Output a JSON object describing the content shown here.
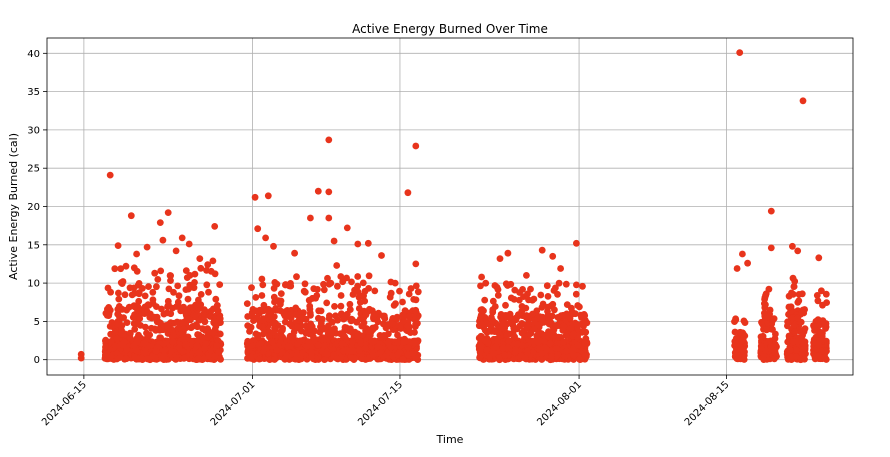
{
  "chart_data": {
    "type": "scatter",
    "title": "Active Energy Burned Over Time",
    "xlabel": "Time",
    "ylabel": "Active Energy Burned (cal)",
    "xlim": [
      "2024-06-11T12:00",
      "2024-08-27T00:00"
    ],
    "ylim": [
      -2,
      42
    ],
    "x_ticks": [
      "2024-06-15",
      "2024-07-01",
      "2024-07-15",
      "2024-08-01",
      "2024-08-15"
    ],
    "y_ticks": [
      0,
      5,
      10,
      15,
      20,
      25,
      30,
      35,
      40
    ],
    "grid": true,
    "marker_color": "#e8341c",
    "series": [
      {
        "points": [
          [
            "2024-06-14T18:00",
            0.7
          ],
          [
            "2024-06-14T18:00",
            0.2
          ],
          [
            "2024-06-17T12:00",
            24.1
          ],
          [
            "2024-06-19T12:00",
            18.8
          ],
          [
            "2024-06-22T06:00",
            17.9
          ],
          [
            "2024-06-23T00:00",
            19.2
          ],
          [
            "2024-06-24T08:00",
            15.9
          ],
          [
            "2024-06-27T10:00",
            17.4
          ],
          [
            "2024-06-18T06:00",
            14.9
          ],
          [
            "2024-06-20T00:00",
            13.8
          ],
          [
            "2024-06-21T00:00",
            14.7
          ],
          [
            "2024-06-22T12:00",
            15.6
          ],
          [
            "2024-06-23T18:00",
            14.2
          ],
          [
            "2024-06-25T00:00",
            15.1
          ],
          [
            "2024-06-26T00:00",
            13.2
          ],
          [
            "2024-06-27T06:00",
            12.9
          ],
          [
            "2024-06-26T18:00",
            12.4
          ],
          [
            "2024-06-19T00:00",
            12.2
          ],
          [
            "2024-07-01T06:00",
            21.2
          ],
          [
            "2024-07-02T12:00",
            21.4
          ],
          [
            "2024-07-01T12:00",
            17.1
          ],
          [
            "2024-07-02T06:00",
            15.9
          ],
          [
            "2024-07-03T00:00",
            14.8
          ],
          [
            "2024-07-05T00:00",
            13.9
          ],
          [
            "2024-07-06T12:00",
            18.5
          ],
          [
            "2024-07-07T06:00",
            22.0
          ],
          [
            "2024-07-08T06:00",
            28.7
          ],
          [
            "2024-07-08T06:00",
            21.9
          ],
          [
            "2024-07-08T06:00",
            18.5
          ],
          [
            "2024-07-08T18:00",
            15.5
          ],
          [
            "2024-07-10T00:00",
            17.2
          ],
          [
            "2024-07-11T00:00",
            15.1
          ],
          [
            "2024-07-12T00:00",
            15.2
          ],
          [
            "2024-07-13T06:00",
            13.6
          ],
          [
            "2024-07-15T18:00",
            21.8
          ],
          [
            "2024-07-16T12:00",
            27.9
          ],
          [
            "2024-07-16T12:00",
            12.5
          ],
          [
            "2024-07-09T00:00",
            12.3
          ],
          [
            "2024-07-22T18:00",
            10.8
          ],
          [
            "2024-07-24T12:00",
            13.2
          ],
          [
            "2024-07-25T06:00",
            13.9
          ],
          [
            "2024-07-28T12:00",
            14.3
          ],
          [
            "2024-07-29T12:00",
            13.5
          ],
          [
            "2024-07-30T06:00",
            11.9
          ],
          [
            "2024-07-31T18:00",
            15.2
          ],
          [
            "2024-07-27T00:00",
            11.0
          ],
          [
            "2024-08-16T06:00",
            40.1
          ],
          [
            "2024-08-16T12:00",
            13.8
          ],
          [
            "2024-08-16T00:00",
            11.9
          ],
          [
            "2024-08-17T00:00",
            12.6
          ],
          [
            "2024-08-19T06:00",
            19.4
          ],
          [
            "2024-08-19T06:00",
            14.6
          ],
          [
            "2024-08-21T06:00",
            14.8
          ],
          [
            "2024-08-21T18:00",
            14.2
          ],
          [
            "2024-08-22T06:00",
            33.8
          ],
          [
            "2024-08-23T18:00",
            13.3
          ],
          [
            "2024-08-24T00:00",
            9.0
          ]
        ],
        "dense_bands": [
          {
            "from": "2024-06-17T00:00",
            "to": "2024-06-28T00:00",
            "max": 12,
            "count": 950
          },
          {
            "from": "2024-06-30T12:00",
            "to": "2024-07-16T18:00",
            "max": 11,
            "count": 1300
          },
          {
            "from": "2024-07-22T12:00",
            "to": "2024-08-01T18:00",
            "max": 10,
            "count": 900
          },
          {
            "from": "2024-08-15T18:00",
            "to": "2024-08-16T18:00",
            "max": 6,
            "count": 110
          },
          {
            "from": "2024-08-18T06:00",
            "to": "2024-08-19T18:00",
            "max": 10,
            "count": 150
          },
          {
            "from": "2024-08-20T18:00",
            "to": "2024-08-22T12:00",
            "max": 11,
            "count": 170
          },
          {
            "from": "2024-08-23T06:00",
            "to": "2024-08-24T12:00",
            "max": 9,
            "count": 140
          }
        ]
      }
    ]
  }
}
